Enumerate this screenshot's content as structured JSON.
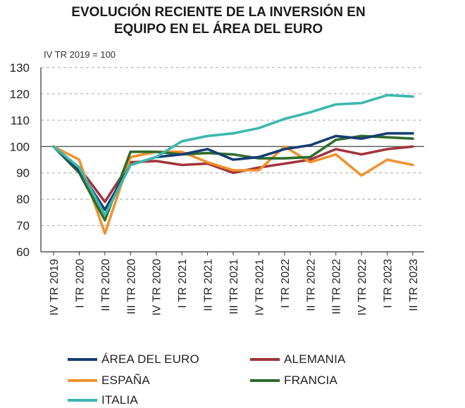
{
  "chart_data": {
    "type": "line",
    "title_lines": [
      "EVOLUCIÓN RECIENTE DE LA INVERSIÓN EN",
      "EQUIPO EN EL ÁREA DEL EURO"
    ],
    "subtitle": "IV TR 2019 = 100",
    "categories": [
      "IV TR 2019",
      "I TR 2020",
      "II TR 2020",
      "III TR 2020",
      "IV TR 2020",
      "I TR 2021",
      "II TR 2021",
      "III TR 2021",
      "IV TR 2021",
      "I TR 2022",
      "II TR 2022",
      "III TR 2022",
      "IV TR 2022",
      "I TR 2023",
      "II TR 2023"
    ],
    "y_ticks": [
      "60",
      "70",
      "80",
      "90",
      "100",
      "110",
      "120",
      "130"
    ],
    "ylim": [
      60,
      130
    ],
    "grid": "dashed horizontal",
    "legend_position": "bottom",
    "series": [
      {
        "name": "ÁREA DEL EURO",
        "color": "#163d73",
        "values": [
          100,
          91,
          76,
          93,
          96,
          97,
          99,
          95,
          96,
          99,
          100.5,
          104,
          103,
          105,
          105
        ]
      },
      {
        "name": "ALEMANIA",
        "color": "#a3343c",
        "values": [
          100,
          92,
          79,
          94,
          94.5,
          93,
          93.5,
          90,
          92,
          93.5,
          95,
          99,
          97,
          99,
          100
        ]
      },
      {
        "name": "ESPAÑA",
        "color": "#f0922f",
        "values": [
          100,
          95,
          67,
          96,
          98,
          98,
          94,
          91,
          91,
          100,
          94,
          97,
          89,
          95,
          93
        ]
      },
      {
        "name": "FRANCIA",
        "color": "#2f6b2a",
        "values": [
          100,
          90,
          72,
          98,
          98,
          97,
          97.5,
          97,
          95.5,
          95.5,
          96,
          102.5,
          104,
          103.5,
          103
        ]
      },
      {
        "name": "ITALIA",
        "color": "#3cb8ae",
        "values": [
          100,
          92,
          74,
          93,
          96,
          102,
          104,
          105,
          107,
          110.5,
          113,
          116,
          116.5,
          119.5,
          119
        ]
      }
    ]
  }
}
